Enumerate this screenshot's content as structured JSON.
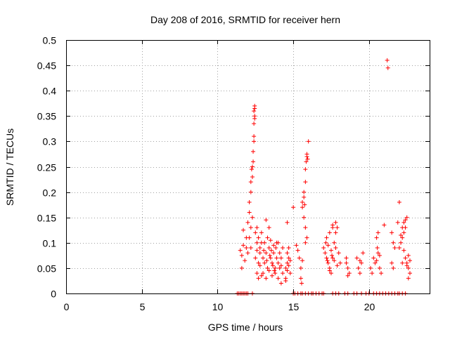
{
  "chart_data": {
    "type": "scatter",
    "title": "Day 208 of 2016, SRMTID for receiver hern",
    "xlabel": "GPS time / hours",
    "ylabel": "SRMTID / TECUs",
    "xlim": [
      0,
      24
    ],
    "ylim": [
      0,
      0.5
    ],
    "xticks": [
      "0",
      "5",
      "10",
      "15",
      "20"
    ],
    "yticks": [
      "0",
      "0.05",
      "0.1",
      "0.15",
      "0.2",
      "0.25",
      "0.3",
      "0.35",
      "0.4",
      "0.45",
      "0.5"
    ],
    "grid": true,
    "marker": "+",
    "color": "#ff0000",
    "series": [
      {
        "name": "SRMTID",
        "points": [
          [
            11.3,
            0
          ],
          [
            11.4,
            0
          ],
          [
            11.5,
            0
          ],
          [
            11.6,
            0
          ],
          [
            11.7,
            0
          ],
          [
            11.8,
            0
          ],
          [
            11.9,
            0
          ],
          [
            12.0,
            0
          ],
          [
            12.3,
            0
          ],
          [
            15.0,
            0
          ],
          [
            15.1,
            0
          ],
          [
            15.3,
            0
          ],
          [
            15.5,
            0
          ],
          [
            15.6,
            0
          ],
          [
            15.8,
            0
          ],
          [
            16.0,
            0
          ],
          [
            16.2,
            0
          ],
          [
            16.3,
            0
          ],
          [
            16.5,
            0
          ],
          [
            16.7,
            0
          ],
          [
            16.9,
            0
          ],
          [
            17.0,
            0
          ],
          [
            17.6,
            0
          ],
          [
            17.8,
            0
          ],
          [
            18.0,
            0
          ],
          [
            18.4,
            0
          ],
          [
            18.6,
            0
          ],
          [
            19.0,
            0
          ],
          [
            19.2,
            0
          ],
          [
            19.5,
            0
          ],
          [
            19.8,
            0
          ],
          [
            20.0,
            0
          ],
          [
            20.3,
            0
          ],
          [
            20.5,
            0
          ],
          [
            20.7,
            0
          ],
          [
            20.9,
            0
          ],
          [
            21.1,
            0
          ],
          [
            21.3,
            0
          ],
          [
            21.5,
            0
          ],
          [
            21.7,
            0
          ],
          [
            21.9,
            0
          ],
          [
            22.0,
            0
          ],
          [
            22.2,
            0
          ],
          [
            22.4,
            0
          ],
          [
            11.5,
            0.085
          ],
          [
            11.6,
            0.075
          ],
          [
            11.7,
            0.095
          ],
          [
            11.8,
            0.065
          ],
          [
            11.9,
            0.09
          ],
          [
            12.0,
            0.08
          ],
          [
            11.6,
            0.05
          ],
          [
            11.7,
            0.125
          ],
          [
            11.9,
            0.11
          ],
          [
            12.0,
            0.14
          ],
          [
            12.1,
            0.16
          ],
          [
            12.1,
            0.18
          ],
          [
            12.2,
            0.2
          ],
          [
            12.2,
            0.22
          ],
          [
            12.25,
            0.245
          ],
          [
            12.3,
            0.25
          ],
          [
            12.3,
            0.23
          ],
          [
            12.35,
            0.26
          ],
          [
            12.35,
            0.28
          ],
          [
            12.4,
            0.3
          ],
          [
            12.4,
            0.31
          ],
          [
            12.4,
            0.335
          ],
          [
            12.45,
            0.345
          ],
          [
            12.45,
            0.35
          ],
          [
            12.4,
            0.36
          ],
          [
            12.45,
            0.365
          ],
          [
            12.45,
            0.37
          ],
          [
            12.2,
            0.13
          ],
          [
            12.3,
            0.15
          ],
          [
            12.1,
            0.11
          ],
          [
            12.2,
            0.09
          ],
          [
            12.5,
            0.12
          ],
          [
            12.6,
            0.1
          ],
          [
            12.7,
            0.11
          ],
          [
            12.8,
            0.09
          ],
          [
            12.5,
            0.07
          ],
          [
            12.7,
            0.06
          ],
          [
            12.9,
            0.12
          ],
          [
            12.6,
            0.13
          ],
          [
            12.8,
            0.08
          ],
          [
            12.6,
            0.04
          ],
          [
            12.7,
            0.03
          ],
          [
            12.9,
            0.035
          ],
          [
            12.8,
            0.055
          ],
          [
            12.6,
            0.085
          ],
          [
            12.9,
            0.1
          ],
          [
            13.0,
            0.07
          ],
          [
            13.1,
            0.06
          ],
          [
            13.2,
            0.08
          ],
          [
            13.3,
            0.05
          ],
          [
            13.4,
            0.09
          ],
          [
            13.5,
            0.07
          ],
          [
            13.6,
            0.06
          ],
          [
            13.7,
            0.08
          ],
          [
            13.8,
            0.05
          ],
          [
            13.9,
            0.07
          ],
          [
            13.0,
            0.04
          ],
          [
            13.2,
            0.03
          ],
          [
            13.4,
            0.045
          ],
          [
            13.6,
            0.035
          ],
          [
            13.8,
            0.04
          ],
          [
            13.1,
            0.1
          ],
          [
            13.3,
            0.11
          ],
          [
            13.5,
            0.105
          ],
          [
            13.7,
            0.095
          ],
          [
            13.9,
            0.1
          ],
          [
            13.2,
            0.145
          ],
          [
            13.4,
            0.13
          ],
          [
            13.05,
            0.085
          ],
          [
            13.25,
            0.065
          ],
          [
            13.45,
            0.075
          ],
          [
            13.65,
            0.055
          ],
          [
            13.85,
            0.09
          ],
          [
            13.55,
            0.085
          ],
          [
            13.75,
            0.045
          ],
          [
            14.0,
            0.06
          ],
          [
            14.1,
            0.05
          ],
          [
            14.2,
            0.07
          ],
          [
            14.3,
            0.04
          ],
          [
            14.0,
            0.03
          ],
          [
            14.2,
            0.02
          ],
          [
            14.1,
            0.08
          ],
          [
            14.3,
            0.09
          ],
          [
            14.0,
            0.1
          ],
          [
            14.2,
            0.055
          ],
          [
            14.5,
            0.05
          ],
          [
            14.6,
            0.06
          ],
          [
            14.7,
            0.07
          ],
          [
            14.5,
            0.03
          ],
          [
            14.6,
            0.08
          ],
          [
            14.7,
            0.09
          ],
          [
            14.8,
            0.04
          ],
          [
            14.6,
            0.045
          ],
          [
            14.8,
            0.065
          ],
          [
            14.7,
            0.055
          ],
          [
            14.6,
            0.14
          ],
          [
            14.5,
            0.025
          ],
          [
            15.0,
            0.17
          ],
          [
            15.2,
            0.095
          ],
          [
            15.3,
            0.085
          ],
          [
            15.4,
            0.07
          ],
          [
            15.5,
            0.05
          ],
          [
            15.6,
            0.065
          ],
          [
            15.5,
            0.03
          ],
          [
            15.55,
            0.02
          ],
          [
            15.6,
            0.17
          ],
          [
            15.7,
            0.19
          ],
          [
            15.7,
            0.2
          ],
          [
            15.8,
            0.22
          ],
          [
            15.8,
            0.245
          ],
          [
            15.85,
            0.26
          ],
          [
            15.9,
            0.27
          ],
          [
            15.9,
            0.275
          ],
          [
            15.95,
            0.265
          ],
          [
            16.0,
            0.3
          ],
          [
            15.7,
            0.15
          ],
          [
            15.8,
            0.13
          ],
          [
            15.8,
            0.1
          ],
          [
            15.9,
            0.11
          ],
          [
            15.6,
            0.18
          ],
          [
            15.75,
            0.175
          ],
          [
            17.0,
            0.09
          ],
          [
            17.1,
            0.08
          ],
          [
            17.2,
            0.07
          ],
          [
            17.3,
            0.06
          ],
          [
            17.4,
            0.05
          ],
          [
            17.5,
            0.04
          ],
          [
            17.6,
            0.07
          ],
          [
            17.7,
            0.1
          ],
          [
            17.8,
            0.12
          ],
          [
            17.9,
            0.13
          ],
          [
            17.2,
            0.11
          ],
          [
            17.4,
            0.12
          ],
          [
            17.6,
            0.135
          ],
          [
            17.8,
            0.09
          ],
          [
            18.0,
            0.08
          ],
          [
            18.1,
            0.06
          ],
          [
            17.3,
            0.095
          ],
          [
            17.5,
            0.085
          ],
          [
            17.7,
            0.065
          ],
          [
            17.9,
            0.055
          ],
          [
            17.8,
            0.14
          ],
          [
            17.6,
            0.13
          ],
          [
            17.4,
            0.045
          ],
          [
            17.55,
            0.075
          ],
          [
            17.25,
            0.065
          ],
          [
            17.15,
            0.1
          ],
          [
            18.5,
            0.06
          ],
          [
            18.6,
            0.05
          ],
          [
            18.7,
            0.04
          ],
          [
            18.5,
            0.07
          ],
          [
            18.6,
            0.035
          ],
          [
            19.2,
            0.07
          ],
          [
            19.3,
            0.05
          ],
          [
            19.4,
            0.04
          ],
          [
            19.5,
            0.06
          ],
          [
            19.6,
            0.08
          ],
          [
            19.4,
            0.065
          ],
          [
            20.1,
            0.05
          ],
          [
            20.2,
            0.04
          ],
          [
            20.3,
            0.07
          ],
          [
            20.4,
            0.06
          ],
          [
            20.6,
            0.08
          ],
          [
            20.7,
            0.05
          ],
          [
            20.5,
            0.065
          ],
          [
            20.8,
            0.04
          ],
          [
            20.5,
            0.11
          ],
          [
            20.6,
            0.12
          ],
          [
            20.55,
            0.09
          ],
          [
            20.7,
            0.075
          ],
          [
            21.0,
            0.135
          ],
          [
            21.2,
            0.46
          ],
          [
            21.25,
            0.445
          ],
          [
            21.5,
            0.12
          ],
          [
            21.6,
            0.1
          ],
          [
            21.7,
            0.09
          ],
          [
            21.5,
            0.06
          ],
          [
            21.6,
            0.05
          ],
          [
            22.0,
            0.09
          ],
          [
            22.1,
            0.1
          ],
          [
            22.2,
            0.11
          ],
          [
            22.3,
            0.12
          ],
          [
            22.4,
            0.13
          ],
          [
            22.5,
            0.15
          ],
          [
            22.3,
            0.14
          ],
          [
            22.4,
            0.145
          ],
          [
            22.2,
            0.13
          ],
          [
            22.1,
            0.115
          ],
          [
            22.3,
            0.085
          ],
          [
            22.4,
            0.07
          ],
          [
            22.5,
            0.06
          ],
          [
            22.6,
            0.05
          ],
          [
            22.7,
            0.04
          ],
          [
            22.6,
            0.075
          ],
          [
            22.5,
            0.055
          ],
          [
            22.7,
            0.065
          ],
          [
            22.0,
            0.18
          ],
          [
            21.9,
            0.14
          ],
          [
            22.2,
            0.06
          ],
          [
            22.6,
            0.03
          ]
        ]
      }
    ]
  }
}
